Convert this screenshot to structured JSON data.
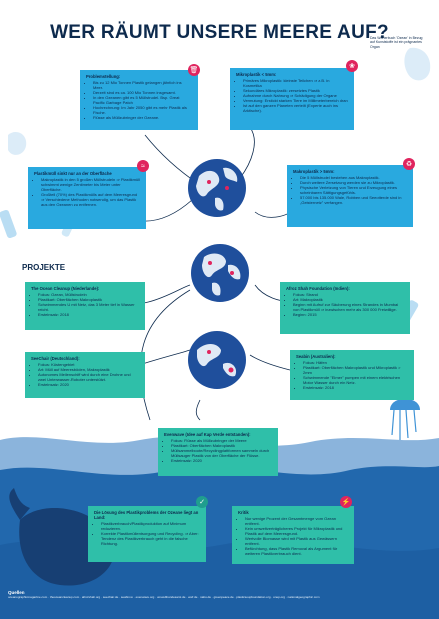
{
  "title": "WER RÄUMT UNSERE MEERE AUF?",
  "side_note": "Das Wörterbuch 'Ozean' in Bezug auf Kunststoffe ist ein prägnantes Organ",
  "problem": {
    "heading": "Problemstellung:",
    "items": [
      "Bis zu 12 Mio Tonnen Plastik gelangen jährlich ins Meer.",
      "Derzeit sind es ca. 100 Mio Tonnen insgesamt.",
      "In den Ozeanen gibt es 5 Müllstrudel. Bsp. Great Pacific Garbage Patch",
      "Hochrechnung: Im Jahr 2050 gibt es mehr Plastik als Fische.",
      "Flüsse als Müllzubringer der Ozeane."
    ]
  },
  "microplastic": {
    "heading": "Mikroplastik < 5mm:",
    "items": [
      "Primäres Mikroplastik: kleinste Teilchen ⇒ z.B. in Kosmetika",
      "Sekundäres Mikroplastik: zersetztes Plastik",
      "Aufnahme durch Nahrung ⇒ Schädigung der Organe",
      "Vermutung: Erstickt starken Tiere im Millimeterbereich dran",
      "Ist auf den ganzen Planeten verteilt (Experte auch ins Arktische)."
    ]
  },
  "surface": {
    "heading": "Plastikmüll sinkt nur an der Oberfläche",
    "items": [
      "Makroplastik in den 5 großen Müllstrudeln ⇒ Plastikmüll schwimmt wenige Zentimeter bis Meter unter Oberfläche.",
      "Großteil (70%) des Plastikmülls auf dem Meeresgrund ⇒ Verschiedene Methoden notwendig, um das Plastik aus den Ozeanen zu entfernen."
    ]
  },
  "macroplastic": {
    "heading": "Makroplastik > 5mm:",
    "items": [
      "Die 5 Müllstrudel bestehen aus Makroplastik.",
      "Durch weitere Zersetzung werden sie zu Mikroplastik.",
      "Physische Verletzung von Tieren und Erzeugung eines scheinbaren Sättigungsgefühls.",
      "57.000 bis 135.000 Wale, Robben und Seeotterde sind in „Geisternetz\" verfangen."
    ]
  },
  "projects_heading": "PROJEKTE",
  "projects": {
    "ocean_cleanup": {
      "heading": "The Ocean Cleanup (Niederlande):",
      "items": [
        "Fokus: Ozean, Müllstrudeln",
        "Plastikart: Oberflächen Makroplastik",
        "Schwimmendes U mit Netz, das 3 Meter tief in Wasser reicht.",
        "Ersteinsatz: 2018"
      ]
    },
    "afroz_shah": {
      "heading": "Afroz Shah Foundation (Indien):",
      "items": [
        "Fokus: Strand",
        "Art: Makroplastik",
        "Beginn mit Aufruf zur Säuberung eines Strandes in Mumbai von Plastikmüll ⇒ inzwischen mehr als 300 000 Freiwillige.",
        "Beginn: 2015"
      ]
    },
    "seechair": {
      "heading": "SeeChair (Deutschland):",
      "items": [
        "Fokus: Küstengebiet",
        "Art: Müll auf Meeresböden, Makroplastik",
        "Autonomes Meilenschiff wird durch eine Drohne und zwei Unterwasser-Roboter unterstützt.",
        "Ersteinsatz: 2020"
      ]
    },
    "seabin": {
      "heading": "Seabin (Australien):",
      "items": [
        "Fokus: Häfen",
        "Plastikart: Oberflächen Makroplastik und Mikroplastik > 2mm",
        "Schwimmende \"Eimer\" pumpen mit einem elektrischen Motor Wasser durch ein Netz.",
        "Ersteinsatz: 2018"
      ]
    },
    "evenwave": {
      "heading": "Evenwave (Idee auf Kap Verde entstanden):",
      "items": [
        "Fokus: Flüsse als Müllzubringer der Meere",
        "Plastikart: Oberflächen Makroplastik",
        "Müllsammelboote/Recyclingplattformen sammeln durch Müllsauger Plastik von der Oberfläche der Flüsse.",
        "Ersteinsatz: 2020"
      ]
    }
  },
  "solution": {
    "heading": "Die Lösung des Plastikproblems der Ozeane liegt an Land:",
    "items": [
      "Plastikverbrauch/Plastikproduktion auf Minimum reduzieren.",
      "Korrekte Plastikmüllentsorgung und Recycling. ⇒ Aber: Tendenz des Plastikverbrauch geht in die falsche Richtung."
    ]
  },
  "critique": {
    "heading": "Kritik",
    "items": [
      "Nur wenige Prozent der Gesamtmenge vom Ozean entfernt.",
      "Kein umweltverträglicheres Projekt für Mikroplastik und Plastik auf dem Meeresgrund.",
      "Wertvolle Biomasse wird mit Plastik aus Gewässern entfernt.",
      "Befürchtung, dass Plastik Removal als Argument für weiteren Plastikverbrauch dient."
    ]
  },
  "sources": {
    "heading": "Quellen",
    "text": "oceanographicmagazine.com · theoceancleanup.com · afrozshah.org · seechair.de · seabin.io · evenwave.org · umweltbundesamt.de · wwf.de · nabu.de · greenpeace.de · plasticsoupfoundation.org · unep.org · nationalgeographic.com"
  },
  "colors": {
    "navy": "#0d2a4d",
    "blue_box": "#29a9df",
    "teal_box": "#2fbfa9",
    "sea_dark": "#1d5fa3",
    "sea_mid": "#2c77bf",
    "accent_red": "#e0245e"
  }
}
